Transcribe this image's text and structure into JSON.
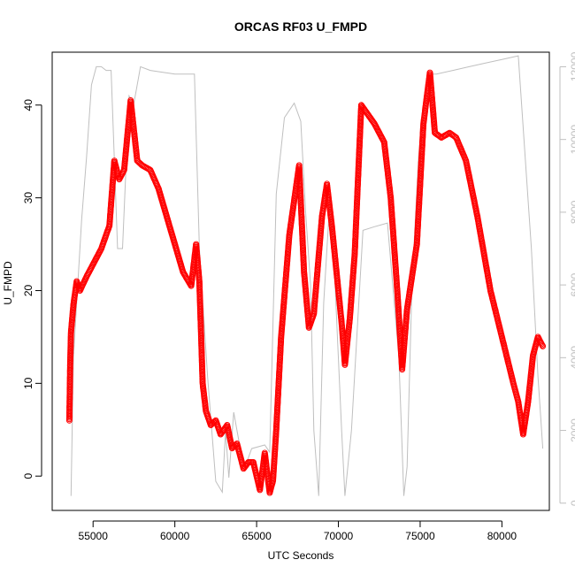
{
  "chart_data": {
    "type": "scatter",
    "title": "ORCAS RF03 U_FMPD",
    "xlabel": "UTC Seconds",
    "ylabel": "U_FMPD",
    "xlim": [
      52500,
      82900
    ],
    "ylim": [
      -3.7,
      45.7
    ],
    "y2lim": [
      -200,
      12400
    ],
    "x_ticks": [
      55000,
      60000,
      65000,
      70000,
      75000,
      80000
    ],
    "y_ticks": [
      0,
      10,
      20,
      30,
      40
    ],
    "y2_ticks": [
      0,
      2000,
      4000,
      6000,
      8000,
      10000,
      12000
    ],
    "colors": {
      "points": "#ff0000",
      "secondary_line": "#bfbfbf",
      "right_axis": "#bfbfbf"
    },
    "series": [
      {
        "axis": "left",
        "marker": "open-circle",
        "points": [
          [
            53550,
            6.0
          ],
          [
            53600,
            12.0
          ],
          [
            53650,
            15.5
          ],
          [
            53800,
            18.5
          ],
          [
            54000,
            21.0
          ],
          [
            54200,
            20.0
          ],
          [
            54600,
            21.5
          ],
          [
            54900,
            22.5
          ],
          [
            55500,
            24.5
          ],
          [
            56000,
            27.0
          ],
          [
            56300,
            34.0
          ],
          [
            56600,
            32.0
          ],
          [
            56900,
            33.0
          ],
          [
            57300,
            40.5
          ],
          [
            57700,
            34.0
          ],
          [
            58000,
            33.5
          ],
          [
            58500,
            33.0
          ],
          [
            59000,
            31.0
          ],
          [
            59500,
            28.0
          ],
          [
            60000,
            25.0
          ],
          [
            60500,
            22.0
          ],
          [
            61000,
            20.5
          ],
          [
            61300,
            25.0
          ],
          [
            61500,
            21.0
          ],
          [
            61700,
            10.0
          ],
          [
            61900,
            7.0
          ],
          [
            62200,
            5.5
          ],
          [
            62500,
            6.0
          ],
          [
            62800,
            4.5
          ],
          [
            63200,
            5.5
          ],
          [
            63500,
            3.0
          ],
          [
            63800,
            3.5
          ],
          [
            64200,
            0.8
          ],
          [
            64500,
            1.5
          ],
          [
            64800,
            1.5
          ],
          [
            65200,
            -1.5
          ],
          [
            65500,
            2.5
          ],
          [
            65800,
            -1.8
          ],
          [
            66000,
            -0.5
          ],
          [
            66200,
            5.0
          ],
          [
            66500,
            15.0
          ],
          [
            67000,
            26.0
          ],
          [
            67600,
            33.5
          ],
          [
            67900,
            22.0
          ],
          [
            68200,
            16.0
          ],
          [
            68500,
            17.5
          ],
          [
            69000,
            28.0
          ],
          [
            69300,
            31.5
          ],
          [
            69600,
            27.0
          ],
          [
            70000,
            20.0
          ],
          [
            70200,
            16.5
          ],
          [
            70400,
            12.0
          ],
          [
            70700,
            17.0
          ],
          [
            71000,
            24.0
          ],
          [
            71400,
            40.0
          ],
          [
            71800,
            39.0
          ],
          [
            72200,
            38.0
          ],
          [
            72800,
            36.0
          ],
          [
            73200,
            30.0
          ],
          [
            73600,
            20.0
          ],
          [
            73900,
            11.5
          ],
          [
            74200,
            18.0
          ],
          [
            74800,
            25.0
          ],
          [
            75200,
            38.0
          ],
          [
            75600,
            43.5
          ],
          [
            75900,
            37.0
          ],
          [
            76300,
            36.5
          ],
          [
            76800,
            37.0
          ],
          [
            77200,
            36.5
          ],
          [
            77800,
            34.0
          ],
          [
            78500,
            28.0
          ],
          [
            79300,
            20.0
          ],
          [
            80000,
            15.0
          ],
          [
            80700,
            10.0
          ],
          [
            81000,
            8.0
          ],
          [
            81300,
            4.5
          ],
          [
            81600,
            8.0
          ],
          [
            81900,
            13.0
          ],
          [
            82200,
            15.0
          ],
          [
            82500,
            14.0
          ]
        ]
      },
      {
        "axis": "right",
        "style": "line",
        "points": [
          [
            53650,
            200
          ],
          [
            53800,
            4000
          ],
          [
            54300,
            7800
          ],
          [
            54600,
            9500
          ],
          [
            54900,
            11500
          ],
          [
            55200,
            12000
          ],
          [
            55500,
            12000
          ],
          [
            55800,
            11900
          ],
          [
            56100,
            11900
          ],
          [
            56500,
            7000
          ],
          [
            56800,
            7000
          ],
          [
            57200,
            11200
          ],
          [
            57500,
            11000
          ],
          [
            57900,
            12000
          ],
          [
            58500,
            11900
          ],
          [
            60000,
            11800
          ],
          [
            61200,
            11800
          ],
          [
            61500,
            7000
          ],
          [
            62000,
            3500
          ],
          [
            62500,
            600
          ],
          [
            62900,
            300
          ],
          [
            63100,
            2000
          ],
          [
            63300,
            700
          ],
          [
            63600,
            2500
          ],
          [
            64000,
            1500
          ],
          [
            64300,
            1000
          ],
          [
            64700,
            1500
          ],
          [
            65500,
            1600
          ],
          [
            65800,
            1400
          ],
          [
            66200,
            8500
          ],
          [
            66700,
            10600
          ],
          [
            67300,
            11000
          ],
          [
            67700,
            10500
          ],
          [
            68000,
            8000
          ],
          [
            68300,
            6000
          ],
          [
            68500,
            2000
          ],
          [
            68800,
            200
          ],
          [
            69100,
            5500
          ],
          [
            69500,
            8500
          ],
          [
            69800,
            6000
          ],
          [
            70200,
            2000
          ],
          [
            70400,
            200
          ],
          [
            70800,
            2000
          ],
          [
            71500,
            7500
          ],
          [
            72200,
            7600
          ],
          [
            73000,
            7700
          ],
          [
            73700,
            4000
          ],
          [
            74000,
            200
          ],
          [
            74200,
            1000
          ],
          [
            74500,
            6000
          ],
          [
            74900,
            9500
          ],
          [
            75200,
            11000
          ],
          [
            75600,
            11800
          ],
          [
            76000,
            11800
          ],
          [
            77000,
            11900
          ],
          [
            78000,
            12000
          ],
          [
            79000,
            12100
          ],
          [
            80000,
            12200
          ],
          [
            81000,
            12300
          ],
          [
            81800,
            7000
          ],
          [
            82200,
            3500
          ],
          [
            82500,
            1500
          ]
        ]
      }
    ]
  }
}
